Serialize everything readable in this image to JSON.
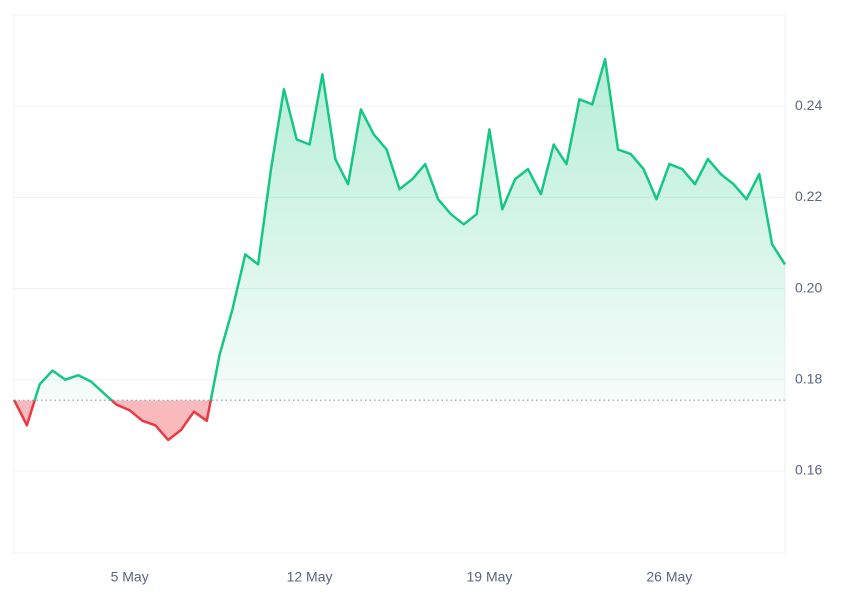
{
  "chart_data": {
    "type": "line",
    "categories": [
      null,
      null,
      null,
      null,
      null,
      null,
      null,
      null,
      null,
      "5 May",
      null,
      null,
      null,
      null,
      null,
      null,
      null,
      null,
      null,
      null,
      null,
      null,
      null,
      "12 May",
      null,
      null,
      null,
      null,
      null,
      null,
      null,
      null,
      null,
      null,
      null,
      null,
      null,
      "19 May",
      null,
      null,
      null,
      null,
      null,
      null,
      null,
      null,
      null,
      null,
      null,
      null,
      null,
      "26 May",
      null,
      null,
      null,
      null,
      null,
      null,
      null,
      null,
      null
    ],
    "series": [
      {
        "color": "#16c784",
        "values": [
          0.1756,
          0.17,
          0.179,
          0.182,
          0.18,
          0.181,
          0.1796,
          0.177,
          0.1745,
          0.1733,
          0.171,
          0.17,
          0.1668,
          0.169,
          0.173,
          0.171,
          0.1855,
          0.1954,
          0.2075,
          0.2053,
          0.2262,
          0.2437,
          0.2327,
          0.2316,
          0.247,
          0.2284,
          0.2229,
          0.2393,
          0.2338,
          0.2305,
          0.2218,
          0.224,
          0.2273,
          0.2196,
          0.2163,
          0.2141,
          0.2163,
          0.2349,
          0.2174,
          0.224,
          0.2262,
          0.2207,
          0.2316,
          0.2273,
          0.2415,
          0.2404,
          0.2503,
          0.2305,
          0.2295,
          0.2262,
          0.2196,
          0.2273,
          0.2262,
          0.2229,
          0.2284,
          0.2251,
          0.2229,
          0.2196,
          0.2251,
          0.2097,
          0.2053
        ]
      }
    ],
    "below_color": "#ea3943",
    "baseline": 0.1755,
    "ylim": [
      0.142,
      0.26
    ],
    "yticks": [
      0.16,
      0.18,
      {
        "value": 0.2,
        "label": "0.20"
      },
      0.22,
      0.24
    ],
    "grid": true
  }
}
